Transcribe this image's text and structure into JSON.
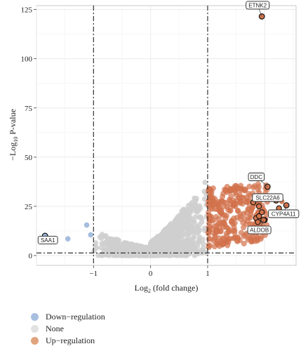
{
  "chart_data": {
    "type": "scatter",
    "xlabel_text": "Log",
    "xlabel_sub": "2",
    "xlabel_rest": " (fold change)",
    "ylabel_text": "−Log",
    "ylabel_sub": "10",
    "ylabel_rest": " P-value",
    "xlim": [
      -2.0,
      2.55
    ],
    "ylim": [
      -5,
      127
    ],
    "x_ticks": [
      -1,
      0,
      1
    ],
    "x_tick_labels": [
      "−1",
      "0",
      "1"
    ],
    "y_ticks": [
      0,
      25,
      50,
      75,
      100,
      125
    ],
    "y_tick_labels": [
      "0",
      "25",
      "50",
      "75",
      "100",
      "125"
    ],
    "fc_threshold": [
      -1,
      1
    ],
    "p_threshold": 1.3,
    "grid": true,
    "colors": {
      "down": "#9ab6da",
      "none": "#cfcfcf",
      "up": "#d4754d"
    },
    "series": [
      {
        "name": "Down−regulation",
        "color": "#9ab6da",
        "points": [
          [
            -1.12,
            15.5
          ],
          [
            -1.05,
            10.5
          ],
          [
            -1.45,
            8.5
          ]
        ]
      },
      {
        "name": "None",
        "color": "#dcdcdc",
        "points": []
      },
      {
        "name": "Up−regulation",
        "color": "#d4754d",
        "points": [
          [
            1.95,
            121.5
          ],
          [
            2.05,
            35
          ],
          [
            2.2,
            28
          ],
          [
            2.3,
            27.5
          ],
          [
            2.38,
            25.5
          ],
          [
            2.25,
            24
          ]
        ]
      }
    ],
    "labeled_genes": [
      {
        "label": "ETNK2",
        "x": 1.95,
        "y": 121.5
      },
      {
        "label": "DDC",
        "x": 2.05,
        "y": 35
      },
      {
        "label": "SLC22A6",
        "x": 2.2,
        "y": 28
      },
      {
        "label": "CYP4A11",
        "x": 2.38,
        "y": 25.5
      },
      {
        "label": "ALDOB",
        "x": 1.98,
        "y": 18
      },
      {
        "label": "SAA1",
        "x": -1.85,
        "y": 10
      }
    ]
  },
  "legend": {
    "items": [
      {
        "label": "Down−regulation",
        "color": "#a7bfdf"
      },
      {
        "label": "None",
        "color": "#e2e2e2"
      },
      {
        "label": "Up−regulation",
        "color": "#e0a37e"
      }
    ]
  }
}
